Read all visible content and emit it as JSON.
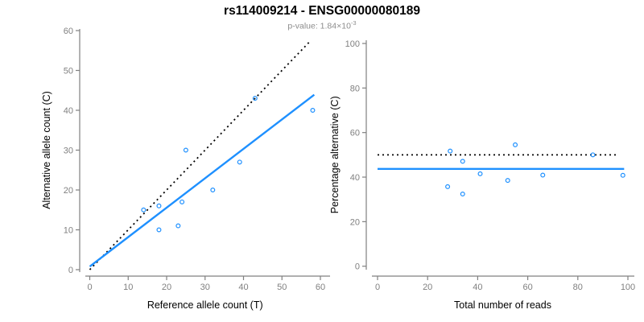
{
  "header": {
    "title": "rs114009214 - ENSG00000080189",
    "p_value_prefix": "p-value: 1.84×10",
    "p_value_exponent": "-3"
  },
  "colors": {
    "point": "#1E90FF",
    "trend_line": "#1E90FF",
    "reference_line": "#000000",
    "axis": "#808080",
    "tick_label": "#808080",
    "axis_title": "#000000",
    "title": "#000000",
    "subtitle": "#8c8c8c"
  },
  "chart_data": [
    {
      "type": "scatter",
      "panel": "allele-counts",
      "xlabel": "Reference allele count (T)",
      "ylabel": "Alternative allele count (C)",
      "xlim": [
        0,
        60
      ],
      "ylim": [
        0,
        60
      ],
      "xticks": [
        0,
        10,
        20,
        30,
        40,
        50,
        60
      ],
      "yticks": [
        0,
        10,
        20,
        30,
        40,
        50,
        60
      ],
      "grid": false,
      "legend": "none",
      "points": [
        [
          14,
          15
        ],
        [
          18,
          16
        ],
        [
          18,
          10
        ],
        [
          23,
          11
        ],
        [
          24,
          17
        ],
        [
          25,
          30
        ],
        [
          32,
          20
        ],
        [
          39,
          27
        ],
        [
          43,
          43
        ],
        [
          58,
          40
        ]
      ],
      "lines": [
        {
          "name": "identity-reference",
          "style": "dotted",
          "color_key": "reference_line",
          "from": [
            0,
            0
          ],
          "to": [
            57.5,
            57.5
          ]
        },
        {
          "name": "fitted-trend",
          "style": "solid",
          "color_key": "trend_line",
          "from": [
            0,
            0.8
          ],
          "to": [
            58.4,
            43.9
          ]
        }
      ]
    },
    {
      "type": "scatter",
      "panel": "percentage-alternative",
      "xlabel": "Total number of reads",
      "ylabel": "Percentage alternative (C)",
      "xlim": [
        0,
        100
      ],
      "ylim": [
        0,
        100
      ],
      "xticks": [
        0,
        20,
        40,
        60,
        80,
        100
      ],
      "yticks": [
        0,
        20,
        40,
        60,
        80,
        100
      ],
      "grid": false,
      "legend": "none",
      "points": [
        [
          29,
          51.7
        ],
        [
          34,
          47.1
        ],
        [
          28,
          35.7
        ],
        [
          34,
          32.4
        ],
        [
          41,
          41.5
        ],
        [
          55,
          54.5
        ],
        [
          52,
          38.5
        ],
        [
          66,
          40.9
        ],
        [
          86,
          50.0
        ],
        [
          98,
          40.8
        ]
      ],
      "lines": [
        {
          "name": "fifty-percent-reference",
          "style": "dotted",
          "color_key": "reference_line",
          "from": [
            0,
            50
          ],
          "to": [
            96,
            50
          ]
        },
        {
          "name": "mean-percentage-trend",
          "style": "solid",
          "color_key": "trend_line",
          "from": [
            0,
            43.7
          ],
          "to": [
            98.5,
            43.7
          ]
        }
      ]
    }
  ]
}
